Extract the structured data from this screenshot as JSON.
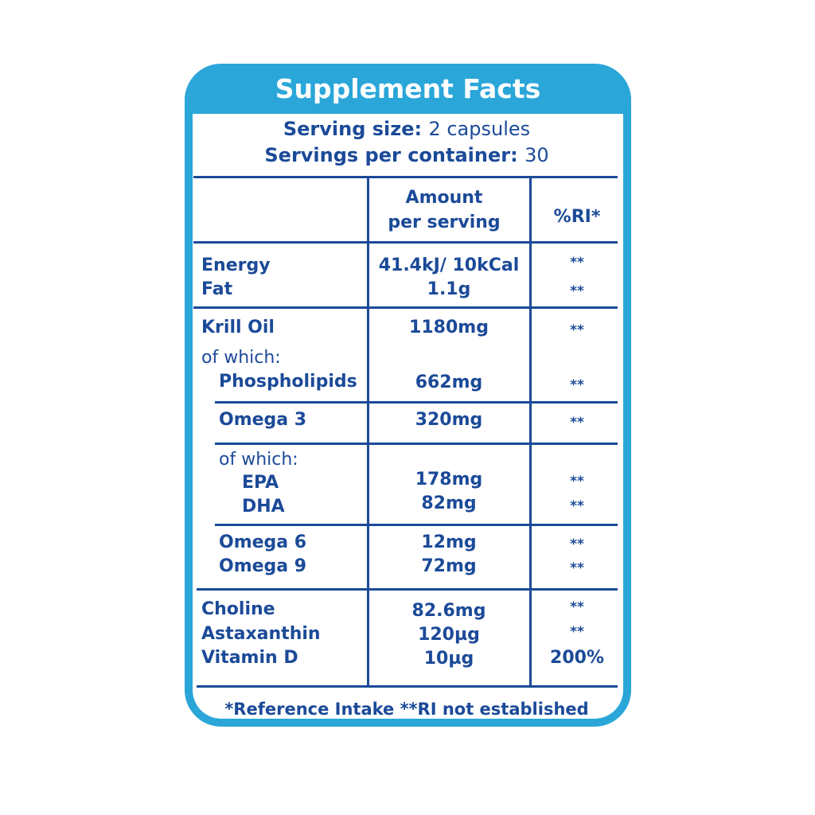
{
  "title": "Supplement Facts",
  "serving": {
    "size_label": "Serving size:",
    "size_value": "2 capsules",
    "per_container_label": "Servings per container:",
    "per_container_value": "30"
  },
  "table": {
    "headers": {
      "amount_line1": "Amount",
      "amount_line2": "per serving",
      "ri": "%RI*"
    },
    "rows": [
      {
        "name": "Energy",
        "amount": "41.4kJ/ 10kCal",
        "ri": "**"
      },
      {
        "name": "Fat",
        "amount": "1.1g",
        "ri": "**"
      },
      {
        "name": "Krill Oil",
        "amount": "1180mg",
        "ri": "**"
      },
      {
        "name": "of which:"
      },
      {
        "name": "Phospholipids",
        "amount": "662mg",
        "ri": "**"
      },
      {
        "name": "Omega 3",
        "amount": "320mg",
        "ri": "**"
      },
      {
        "name": "of which:"
      },
      {
        "name": "EPA",
        "amount": "178mg",
        "ri": "**"
      },
      {
        "name": "DHA",
        "amount": "82mg",
        "ri": "**"
      },
      {
        "name": "Omega 6",
        "amount": "12mg",
        "ri": "**"
      },
      {
        "name": "Omega 9",
        "amount": "72mg",
        "ri": "**"
      },
      {
        "name": "Choline",
        "amount": "82.6mg",
        "ri": "**"
      },
      {
        "name": "Astaxanthin",
        "amount": "120µg",
        "ri": "**"
      },
      {
        "name": "Vitamin D",
        "amount": "10µg",
        "ri": "200%"
      }
    ]
  },
  "footer": "*Reference Intake **RI not established",
  "colors": {
    "frame": "#2aa6d9",
    "text": "#1b4a98"
  }
}
